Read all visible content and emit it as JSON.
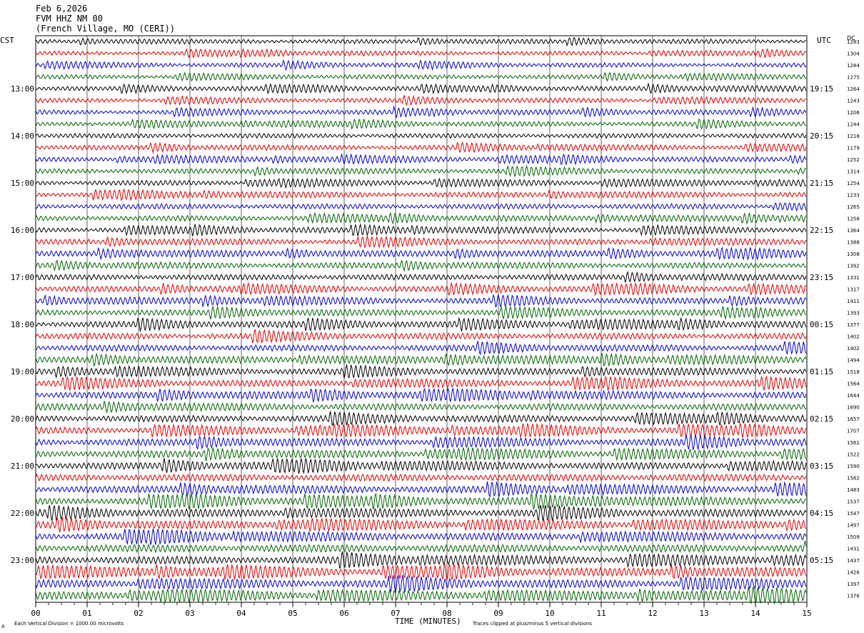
{
  "header": {
    "date": "Feb 6,2026",
    "station": "FVM HHZ NM 00",
    "location": "(French Village, MO (CERI))"
  },
  "chart_data": {
    "type": "line",
    "left_axis_label": "CST",
    "right_axis_label": "UTC",
    "right_column_label": "DC",
    "xlabel": "TIME (MINUTES)",
    "x_ticks": [
      "00",
      "01",
      "02",
      "03",
      "04",
      "05",
      "06",
      "07",
      "08",
      "09",
      "10",
      "11",
      "12",
      "13",
      "14",
      "15"
    ],
    "xlim": [
      0,
      15
    ],
    "left_hour_labels": [
      "13:00",
      "14:00",
      "15:00",
      "16:00",
      "17:00",
      "18:00",
      "19:00",
      "20:00",
      "21:00",
      "22:00",
      "23:00"
    ],
    "right_hour_labels": [
      "19:15",
      "20:15",
      "21:15",
      "22:15",
      "23:15",
      "00:15",
      "01:15",
      "02:15",
      "03:15",
      "04:15",
      "05:15"
    ],
    "dc_offsets": [
      1283,
      1304,
      1284,
      1275,
      1264,
      1243,
      1206,
      1244,
      1218,
      1179,
      1252,
      1314,
      1254,
      1233,
      1265,
      1258,
      1364,
      1388,
      1308,
      1392,
      1331,
      1317,
      1411,
      1393,
      1377,
      1402,
      1402,
      1494,
      1518,
      1564,
      1644,
      1690,
      1657,
      1707,
      1561,
      1522,
      1590,
      1582,
      1483,
      1537,
      1547,
      1497,
      1509,
      1431,
      1437,
      1426,
      1397,
      1376
    ],
    "trace_colors": [
      "#000000",
      "#e00000",
      "#0000d0",
      "#006400"
    ],
    "footer_scale": "Each Vertical Division = 1000.00 microvolts",
    "footer_clip": "Traces clipped at plus/minus 5 vertical divisions",
    "corner_mark": "A",
    "grid": true
  }
}
